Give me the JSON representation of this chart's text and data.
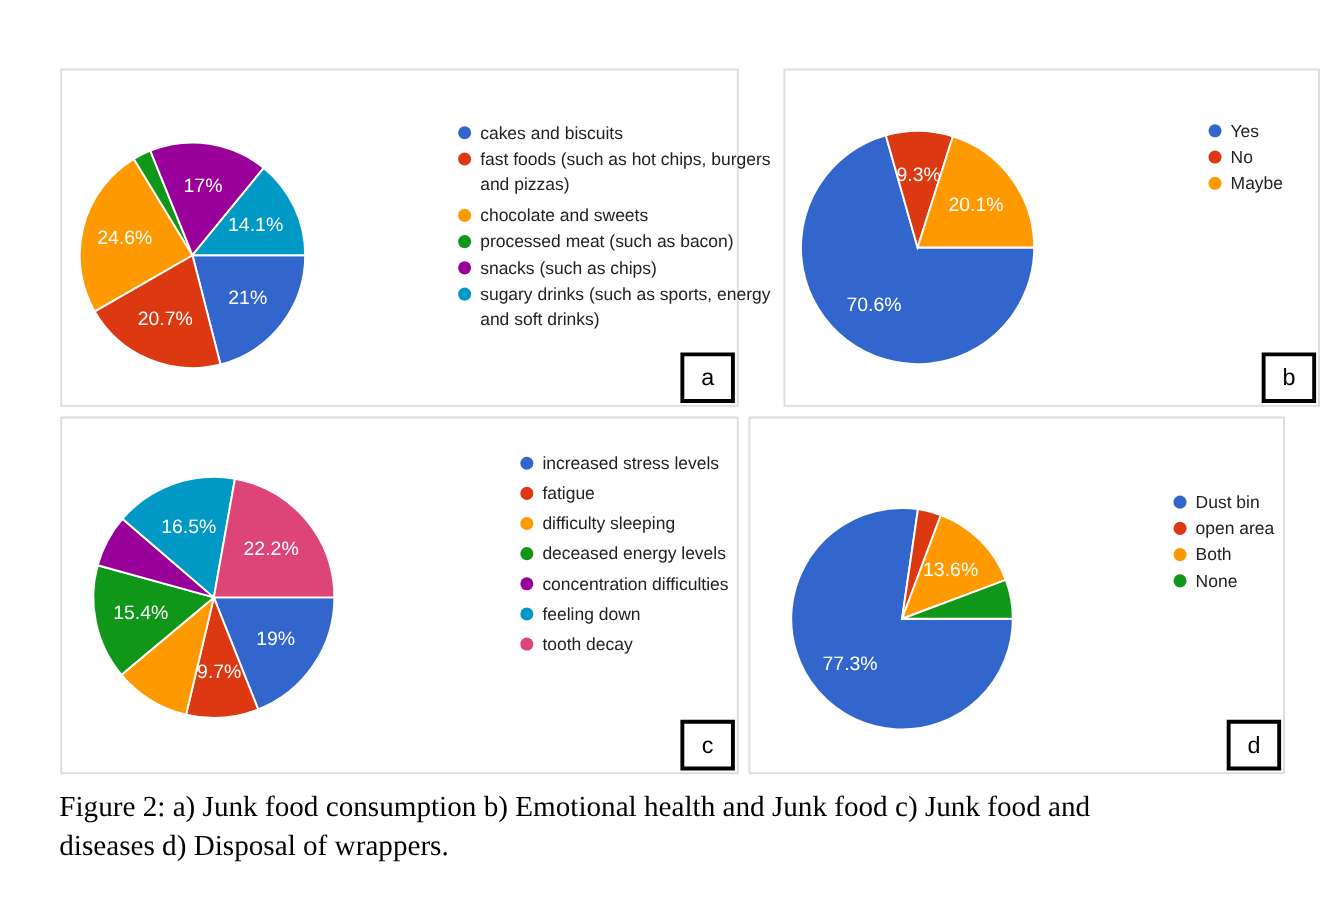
{
  "chart_data": [
    {
      "type": "pie",
      "categories": [
        "cakes and biscuits",
        "fast foods (such as hot chips, burgers and pizzas)",
        "chocolate and sweets",
        "processed meat (such as bacon)",
        "snacks (such as chips)",
        "sugary drinks (such as sports, energy and soft drinks)"
      ],
      "values": [
        21,
        20.7,
        24.6,
        2.6,
        17,
        14.1
      ],
      "colors": [
        "#3366cc",
        "#dc3912",
        "#ff9900",
        "#109618",
        "#990099",
        "#0099c6"
      ],
      "value_labels": [
        "21%",
        "20.7%",
        "24.6%",
        null,
        "17%",
        "14.1%"
      ],
      "legend": "right",
      "annotations": [
        "a"
      ]
    },
    {
      "type": "pie",
      "categories": [
        "Yes",
        "No",
        "Maybe"
      ],
      "values": [
        70.6,
        9.3,
        20.1
      ],
      "colors": [
        "#3366cc",
        "#dc3912",
        "#ff9900"
      ],
      "value_labels": [
        "70.6%",
        "9.3%",
        "20.1%"
      ],
      "legend": "right",
      "annotations": [
        "b"
      ]
    },
    {
      "type": "pie",
      "categories": [
        "increased stress levels",
        "fatigue",
        "difficulty sleeping",
        "deceased energy levels",
        "concentration difficulties",
        "feeling down",
        "tooth decay"
      ],
      "values": [
        19,
        9.7,
        10.2,
        15.4,
        7.0,
        16.5,
        22.2
      ],
      "colors": [
        "#3366cc",
        "#dc3912",
        "#ff9900",
        "#109618",
        "#990099",
        "#0099c6",
        "#dd4477"
      ],
      "value_labels": [
        "19%",
        "9.7%",
        null,
        "15.4%",
        null,
        "16.5%",
        "22.2%"
      ],
      "legend": "right",
      "annotations": [
        "c"
      ]
    },
    {
      "type": "pie",
      "categories": [
        "Dust bin",
        "open area",
        "Both",
        "None"
      ],
      "values": [
        77.3,
        3.4,
        13.6,
        5.7
      ],
      "colors": [
        "#3366cc",
        "#dc3912",
        "#ff9900",
        "#109618"
      ],
      "value_labels": [
        "77.3%",
        null,
        "13.6%",
        null
      ],
      "legend": "right",
      "annotations": [
        "d",
        "Figure 2: a) Junk food consumption b) Emotional health and Junk food c) Junk food and diseases d) Disposal of wrappers."
      ]
    }
  ]
}
